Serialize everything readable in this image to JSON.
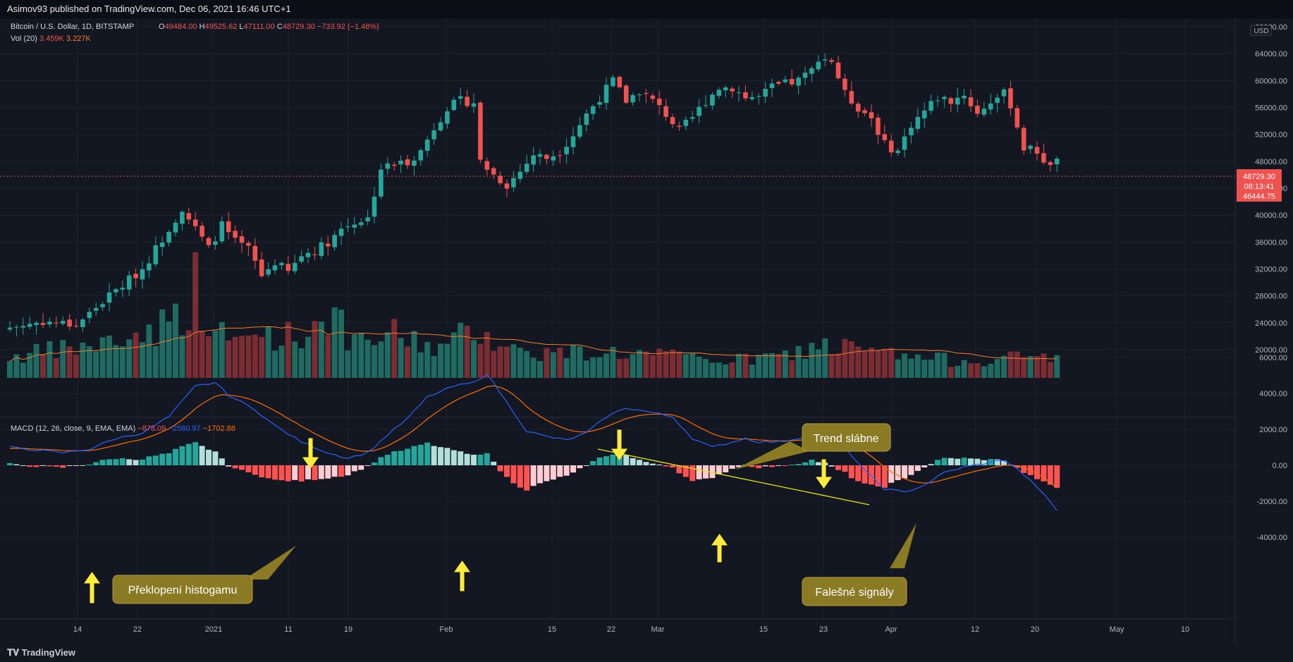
{
  "header": {
    "published": "Asimov93 published on TradingView.com, Dec 06, 2021 16:46 UTC+1"
  },
  "footer": {
    "logo_text": "TradingView"
  },
  "legend": {
    "symbol": "Bitcoin / U.S. Dollar, 1D, BITSTAMP",
    "open_label": "O",
    "open": "49484.00",
    "high_label": "H",
    "high": "49525.62",
    "low_label": "L",
    "low": "47111.00",
    "close_label": "C",
    "close": "48729.30",
    "change": "−733.92 (−1.48%)",
    "vol_label": "Vol (20)",
    "vol_value": "3.459K",
    "vol_ma": "3.227K",
    "macd_label": "MACD (12, 26, close, 9, EMA, EMA)",
    "macd_hist": "−878.09",
    "macd_line": "−2580.97",
    "macd_signal": "−1702.88"
  },
  "price_axis": {
    "currency": "USD",
    "ticks": [
      "68000.00",
      "64000.00",
      "60000.00",
      "56000.00",
      "52000.00",
      "48000.00",
      "44000.00",
      "40000.00",
      "36000.00",
      "32000.00",
      "28000.00",
      "24000.00",
      "20000.00"
    ],
    "last_price": "48729.30",
    "countdown": "08:13:41",
    "low_marker": "46444.75"
  },
  "macd_axis": {
    "ticks": [
      "6000.00",
      "4000.00",
      "2000.00",
      "0.00",
      "-2000.00",
      "-4000.00"
    ]
  },
  "time_axis": {
    "labels": [
      "14",
      "22",
      "2021",
      "11",
      "19",
      "Feb",
      "15",
      "22",
      "Mar",
      "15",
      "23",
      "Apr",
      "12",
      "20",
      "May",
      "10"
    ]
  },
  "annotations": {
    "trend": "Trend slábne",
    "flip": "Překlopení histogamu",
    "false_signals": "Falešné signály"
  },
  "colors": {
    "up": "#26a69a",
    "down": "#ef5350",
    "volume_ma": "#f57c2a",
    "macd_line": "#2962ff",
    "signal_line": "#ff6d00",
    "hist_up_strong": "#26a69a",
    "hist_up_weak": "#b2dfdb",
    "hist_down_strong": "#ff5252",
    "hist_down_weak": "#ffcdd2",
    "arrow": "#ffeb3b",
    "callout": "#8a7a24",
    "trendline": "#e6e600",
    "background": "#131722"
  },
  "chart_data": {
    "type": "candlestick",
    "symbol": "BTCUSD",
    "interval": "1D",
    "price_range": [
      18000,
      68400
    ],
    "macd_range": [
      -4300,
      6300
    ],
    "price_anchors": [
      [
        0,
        23300
      ],
      [
        5,
        24200
      ],
      [
        10,
        23700
      ],
      [
        15,
        28000
      ],
      [
        20,
        32000
      ],
      [
        24,
        38000
      ],
      [
        26,
        41000
      ],
      [
        28,
        38000
      ],
      [
        30,
        35000
      ],
      [
        32,
        38500
      ],
      [
        34,
        36000
      ],
      [
        36,
        35000
      ],
      [
        38,
        31000
      ],
      [
        40,
        33000
      ],
      [
        42,
        31500
      ],
      [
        44,
        34000
      ],
      [
        46,
        34800
      ],
      [
        48,
        36000
      ],
      [
        50,
        38000
      ],
      [
        52,
        39000
      ],
      [
        54,
        39500
      ],
      [
        56,
        47000
      ],
      [
        58,
        47500
      ],
      [
        60,
        48000
      ],
      [
        62,
        49500
      ],
      [
        64,
        53000
      ],
      [
        66,
        56000
      ],
      [
        68,
        57000
      ],
      [
        70,
        56800
      ],
      [
        71,
        48000
      ],
      [
        73,
        46000
      ],
      [
        75,
        44500
      ],
      [
        77,
        46500
      ],
      [
        79,
        49000
      ],
      [
        81,
        48500
      ],
      [
        83,
        49500
      ],
      [
        85,
        52000
      ],
      [
        87,
        55000
      ],
      [
        89,
        57500
      ],
      [
        91,
        60000
      ],
      [
        93,
        57000
      ],
      [
        95,
        58500
      ],
      [
        97,
        57000
      ],
      [
        99,
        55000
      ],
      [
        101,
        52500
      ],
      [
        103,
        54500
      ],
      [
        105,
        57000
      ],
      [
        107,
        59000
      ],
      [
        109,
        59000
      ],
      [
        111,
        57500
      ],
      [
        113,
        57500
      ],
      [
        115,
        59000
      ],
      [
        117,
        59500
      ],
      [
        119,
        60000
      ],
      [
        121,
        61500
      ],
      [
        122,
        63500
      ],
      [
        124,
        63000
      ],
      [
        126,
        58000
      ],
      [
        128,
        56000
      ],
      [
        130,
        54500
      ],
      [
        132,
        50500
      ],
      [
        134,
        49500
      ],
      [
        136,
        53500
      ],
      [
        138,
        55500
      ],
      [
        140,
        57500
      ],
      [
        142,
        57000
      ],
      [
        144,
        58000
      ],
      [
        146,
        55000
      ],
      [
        148,
        57000
      ],
      [
        150,
        58000
      ],
      [
        151,
        56500
      ],
      [
        153,
        50000
      ],
      [
        155,
        49500
      ],
      [
        157,
        47000
      ],
      [
        158,
        48729.3
      ]
    ],
    "volume_anchors": [
      [
        0,
        1.2
      ],
      [
        8,
        1.6
      ],
      [
        14,
        1.9
      ],
      [
        20,
        2.5
      ],
      [
        26,
        3.6
      ],
      [
        28,
        5.3
      ],
      [
        30,
        2.8
      ],
      [
        34,
        2.0
      ],
      [
        38,
        2.6
      ],
      [
        44,
        2.3
      ],
      [
        48,
        3.9
      ],
      [
        52,
        1.8
      ],
      [
        58,
        2.5
      ],
      [
        62,
        2.0
      ],
      [
        66,
        1.7
      ],
      [
        70,
        3.0
      ],
      [
        76,
        1.6
      ],
      [
        82,
        1.4
      ],
      [
        90,
        1.5
      ],
      [
        100,
        1.2
      ],
      [
        110,
        1.0
      ],
      [
        118,
        1.3
      ],
      [
        122,
        1.9
      ],
      [
        128,
        1.6
      ],
      [
        135,
        1.2
      ],
      [
        142,
        1.0
      ],
      [
        150,
        1.1
      ],
      [
        158,
        1.3
      ]
    ],
    "macd_anchors": [
      [
        0,
        1000
      ],
      [
        8,
        700
      ],
      [
        12,
        900
      ],
      [
        16,
        1500
      ],
      [
        20,
        1800
      ],
      [
        24,
        2700
      ],
      [
        28,
        4400
      ],
      [
        31,
        4600
      ],
      [
        33,
        3900
      ],
      [
        37,
        3100
      ],
      [
        40,
        2200
      ],
      [
        44,
        1300
      ],
      [
        48,
        700
      ],
      [
        51,
        400
      ],
      [
        54,
        700
      ],
      [
        57,
        1700
      ],
      [
        60,
        2600
      ],
      [
        63,
        3800
      ],
      [
        67,
        4400
      ],
      [
        70,
        4600
      ],
      [
        72,
        5100
      ],
      [
        75,
        3500
      ],
      [
        78,
        1900
      ],
      [
        81,
        1600
      ],
      [
        84,
        1400
      ],
      [
        87,
        1800
      ],
      [
        90,
        2700
      ],
      [
        93,
        3200
      ],
      [
        96,
        3000
      ],
      [
        100,
        2700
      ],
      [
        103,
        1500
      ],
      [
        106,
        1000
      ],
      [
        109,
        1300
      ],
      [
        111,
        1500
      ],
      [
        113,
        1300
      ],
      [
        116,
        1300
      ],
      [
        119,
        1500
      ],
      [
        121,
        1800
      ],
      [
        123,
        1700
      ],
      [
        126,
        1000
      ],
      [
        129,
        -300
      ],
      [
        132,
        -1300
      ],
      [
        135,
        -1500
      ],
      [
        138,
        -1100
      ],
      [
        141,
        -400
      ],
      [
        144,
        -100
      ],
      [
        147,
        100
      ],
      [
        150,
        300
      ],
      [
        152,
        -200
      ],
      [
        155,
        -1200
      ],
      [
        158,
        -2500
      ]
    ]
  }
}
